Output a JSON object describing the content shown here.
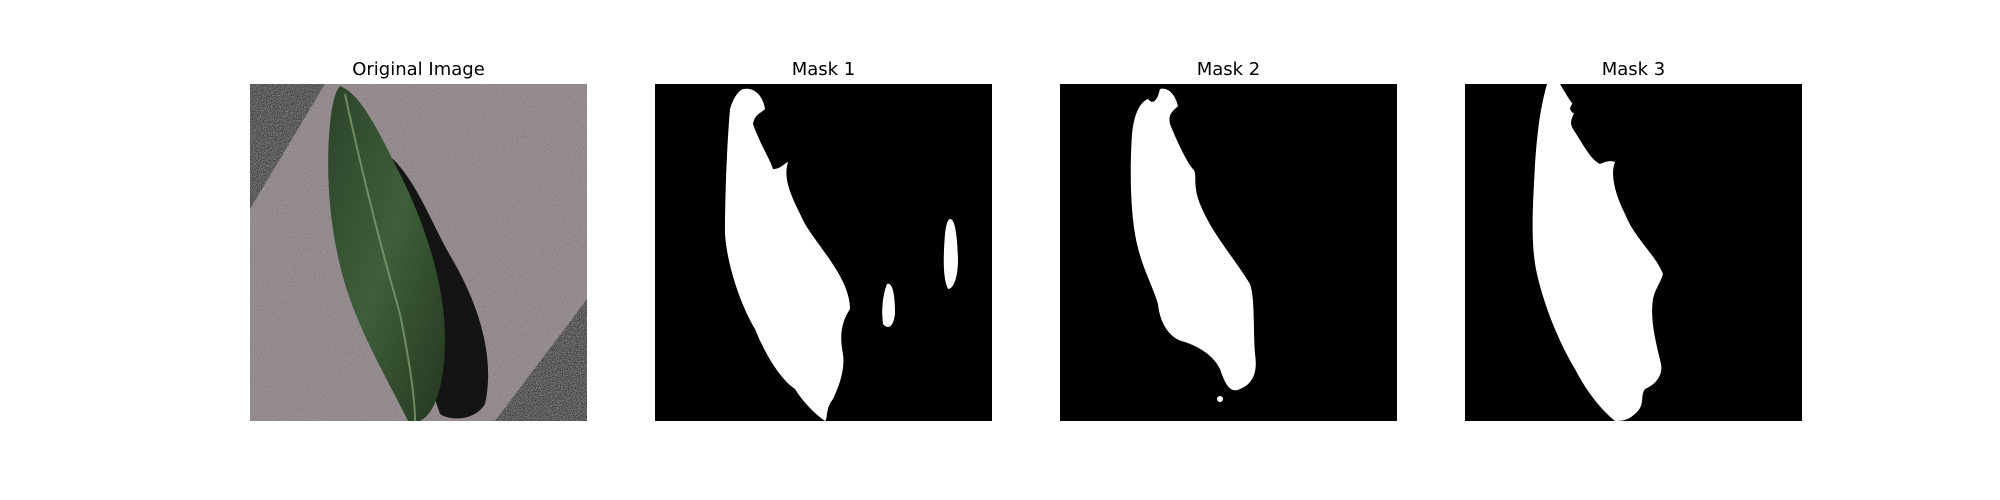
{
  "panels": [
    {
      "title": "Original Image",
      "kind": "photo"
    },
    {
      "title": "Mask 1",
      "kind": "mask"
    },
    {
      "title": "Mask 2",
      "kind": "mask"
    },
    {
      "title": "Mask 3",
      "kind": "mask"
    }
  ],
  "colors": {
    "background": "#ffffff",
    "mask_background": "#000000",
    "mask_foreground": "#ffffff",
    "paper": "#a89ea2",
    "leaf": "#2f4a2c",
    "leaf_shadow": "#141414"
  }
}
